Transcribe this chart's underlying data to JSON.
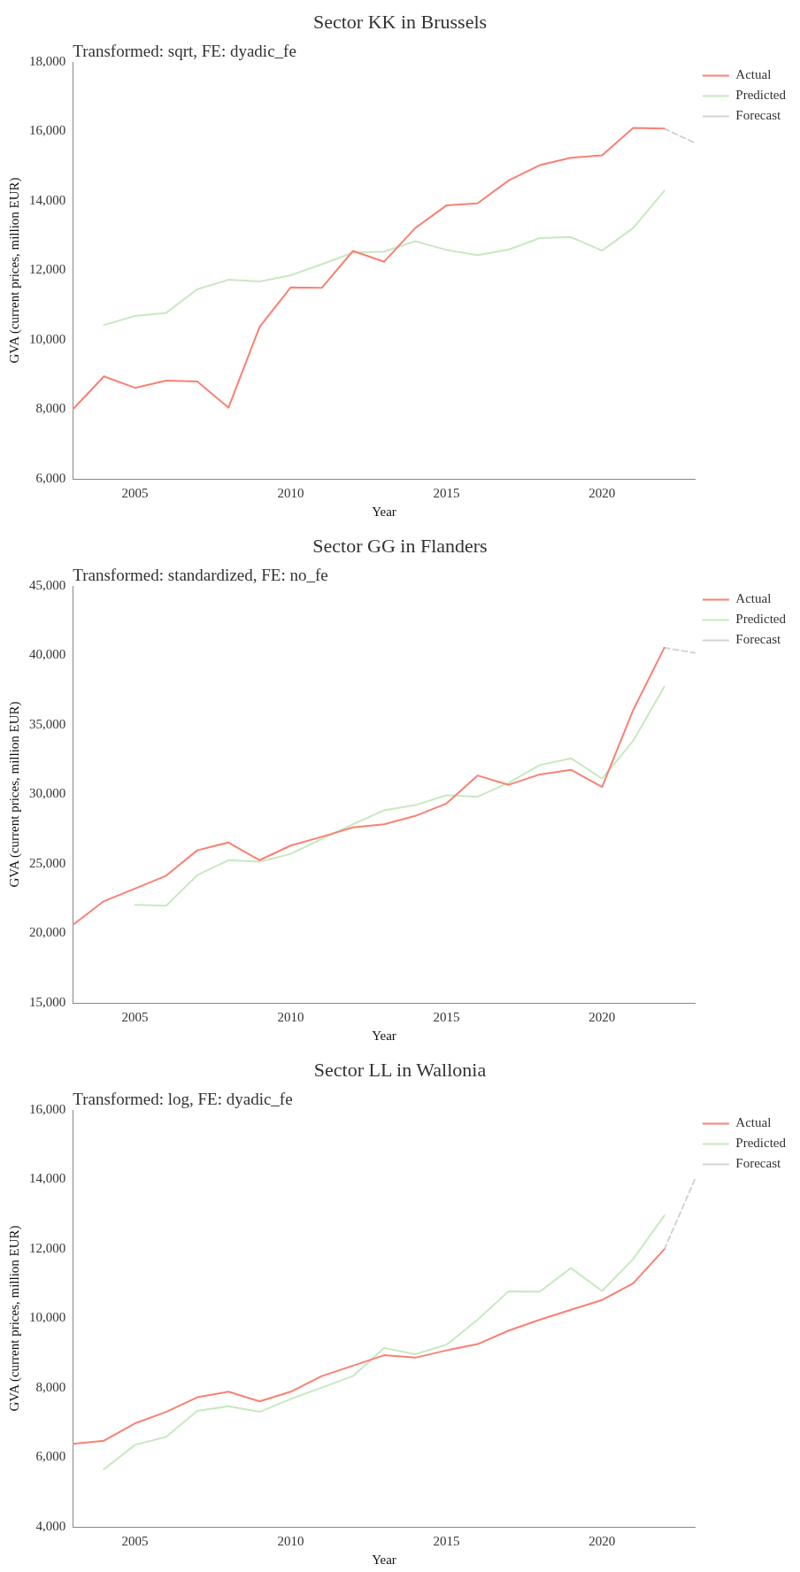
{
  "chart_data": [
    {
      "type": "line",
      "title": "Sector KK in Brussels",
      "subtitle": "Transformed: sqrt, FE: dyadic_fe",
      "xlabel": "Year",
      "ylabel": "GVA (current prices, million EUR)",
      "xlim": [
        2003,
        2023
      ],
      "xticks": [
        2005,
        2010,
        2015,
        2020
      ],
      "ylim": [
        6000,
        18000
      ],
      "yticks": [
        {
          "value": 6000,
          "label": "6,000"
        },
        {
          "value": 8000,
          "label": "8,000"
        },
        {
          "value": 10000,
          "label": "10,000"
        },
        {
          "value": 12000,
          "label": "12,000"
        },
        {
          "value": 14000,
          "label": "14,000"
        },
        {
          "value": 16000,
          "label": "16,000"
        },
        {
          "value": 18000,
          "label": "18,000"
        }
      ],
      "grid": false,
      "legend": "top right",
      "marker": "none",
      "series": [
        {
          "name": "Actual",
          "color": "#fa8072",
          "line_style": "solid",
          "x": [
            2003,
            2004,
            2005,
            2006,
            2007,
            2008,
            2009,
            2010,
            2011,
            2012,
            2013,
            2014,
            2015,
            2016,
            2017,
            2018,
            2019,
            2020,
            2021,
            2022
          ],
          "values": [
            8000,
            8950,
            8620,
            8830,
            8800,
            8050,
            10370,
            11510,
            11500,
            12560,
            12250,
            13220,
            13870,
            13930,
            14590,
            15030,
            15240,
            15310,
            16100,
            16080
          ]
        },
        {
          "name": "Predicted",
          "color": "#c7e9c0",
          "line_style": "solid",
          "x": [
            2004,
            2005,
            2006,
            2007,
            2008,
            2009,
            2010,
            2011,
            2012,
            2013,
            2014,
            2015,
            2016,
            2017,
            2018,
            2019,
            2020,
            2021,
            2022
          ],
          "values": [
            10430,
            10690,
            10780,
            11460,
            11730,
            11680,
            11860,
            12180,
            12510,
            12540,
            12840,
            12590,
            12440,
            12600,
            12930,
            12960,
            12570,
            13220,
            14290
          ]
        },
        {
          "name": "Forecast",
          "color": "#d3d3d3",
          "line_style": "dashed",
          "x": [
            2022,
            2023
          ],
          "values": [
            16080,
            15660
          ]
        }
      ]
    },
    {
      "type": "line",
      "title": "Sector GG in Flanders",
      "subtitle": "Transformed: standardized, FE: no_fe",
      "xlabel": "Year",
      "ylabel": "GVA (current prices, million EUR)",
      "xlim": [
        2003,
        2023
      ],
      "xticks": [
        2005,
        2010,
        2015,
        2020
      ],
      "ylim": [
        15000,
        45000
      ],
      "yticks": [
        {
          "value": 15000,
          "label": "15,000"
        },
        {
          "value": 20000,
          "label": "20,000"
        },
        {
          "value": 25000,
          "label": "25,000"
        },
        {
          "value": 30000,
          "label": "30,000"
        },
        {
          "value": 35000,
          "label": "35,000"
        },
        {
          "value": 40000,
          "label": "40,000"
        },
        {
          "value": 45000,
          "label": "45,000"
        }
      ],
      "grid": false,
      "legend": "top right",
      "marker": "none",
      "series": [
        {
          "name": "Actual",
          "color": "#fa8072",
          "line_style": "solid",
          "x": [
            2003,
            2004,
            2005,
            2006,
            2007,
            2008,
            2009,
            2010,
            2011,
            2012,
            2013,
            2014,
            2015,
            2016,
            2017,
            2018,
            2019,
            2020,
            2021,
            2022
          ],
          "values": [
            20600,
            22320,
            23220,
            24150,
            25980,
            26540,
            25270,
            26320,
            26950,
            27630,
            27850,
            28450,
            29340,
            31360,
            30690,
            31440,
            31770,
            30540,
            36070,
            40550
          ]
        },
        {
          "name": "Predicted",
          "color": "#c7e9c0",
          "line_style": "solid",
          "x": [
            2005,
            2006,
            2007,
            2008,
            2009,
            2010,
            2011,
            2012,
            2013,
            2014,
            2015,
            2016,
            2017,
            2018,
            2019,
            2020,
            2021,
            2022
          ],
          "values": [
            22060,
            21990,
            24190,
            25270,
            25160,
            25720,
            26800,
            27850,
            28860,
            29230,
            29940,
            29830,
            30840,
            32110,
            32600,
            31140,
            33860,
            37750
          ]
        },
        {
          "name": "Forecast",
          "color": "#d3d3d3",
          "line_style": "dashed",
          "x": [
            2022,
            2023
          ],
          "values": [
            40550,
            40180
          ]
        }
      ]
    },
    {
      "type": "line",
      "title": "Sector LL in Wallonia",
      "subtitle": "Transformed: log, FE: dyadic_fe",
      "xlabel": "Year",
      "ylabel": "GVA (current prices, million EUR)",
      "xlim": [
        2003,
        2023
      ],
      "xticks": [
        2005,
        2010,
        2015,
        2020
      ],
      "ylim": [
        4000,
        16000
      ],
      "yticks": [
        {
          "value": 4000,
          "label": "4,000"
        },
        {
          "value": 6000,
          "label": "6,000"
        },
        {
          "value": 8000,
          "label": "8,000"
        },
        {
          "value": 10000,
          "label": "10,000"
        },
        {
          "value": 12000,
          "label": "12,000"
        },
        {
          "value": 14000,
          "label": "14,000"
        },
        {
          "value": 16000,
          "label": "16,000"
        }
      ],
      "grid": false,
      "legend": "top right",
      "marker": "none",
      "series": [
        {
          "name": "Actual",
          "color": "#fa8072",
          "line_style": "solid",
          "x": [
            2003,
            2004,
            2005,
            2006,
            2007,
            2008,
            2009,
            2010,
            2011,
            2012,
            2013,
            2014,
            2015,
            2016,
            2017,
            2018,
            2019,
            2020,
            2021,
            2022
          ],
          "values": [
            6390,
            6480,
            6980,
            7310,
            7730,
            7890,
            7610,
            7890,
            8340,
            8640,
            8940,
            8870,
            9080,
            9260,
            9650,
            9960,
            10250,
            10530,
            11010,
            11990
          ]
        },
        {
          "name": "Predicted",
          "color": "#c7e9c0",
          "line_style": "solid",
          "x": [
            2004,
            2005,
            2006,
            2007,
            2008,
            2009,
            2010,
            2011,
            2012,
            2013,
            2014,
            2015,
            2016,
            2017,
            2018,
            2019,
            2020,
            2021,
            2022
          ],
          "values": [
            5660,
            6360,
            6590,
            7340,
            7470,
            7310,
            7680,
            8010,
            8340,
            9150,
            8970,
            9240,
            9960,
            10780,
            10770,
            11450,
            10790,
            11710,
            12960
          ]
        },
        {
          "name": "Forecast",
          "color": "#d3d3d3",
          "line_style": "dashed",
          "x": [
            2022,
            2023
          ],
          "values": [
            11990,
            14040
          ]
        }
      ]
    }
  ]
}
